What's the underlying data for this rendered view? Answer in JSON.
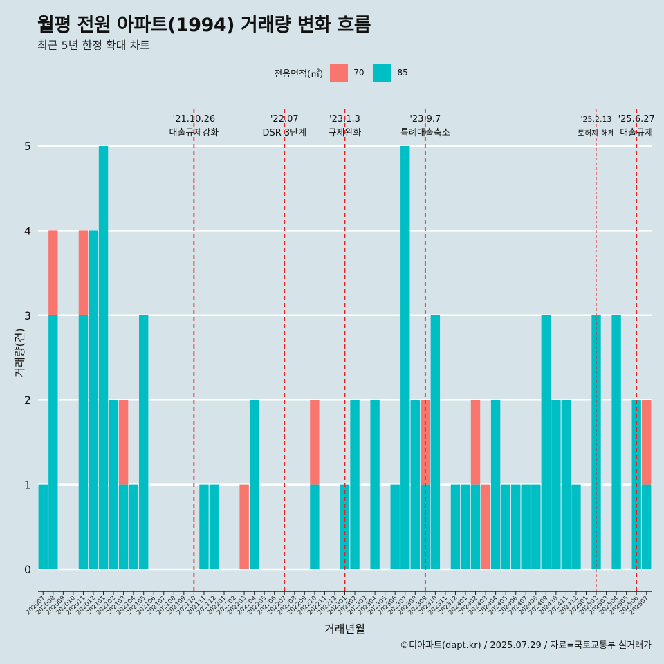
{
  "title": "월평 전원 아파트(1994) 거래량 변화 흐름",
  "subtitle": "최근 5년 한정 확대 차트",
  "caption": "©디아파트(dapt.kr) / 2025.07.29 / 자료=국토교통부 실거래가",
  "colors": {
    "s70": "#f8766d",
    "s85": "#00bfc4",
    "event_line": "#e8201f",
    "background": "#d6e4ea"
  },
  "chart_data": {
    "type": "bar",
    "xlabel": "거래년월",
    "ylabel": "거래량(건)",
    "ylim": [
      0,
      5
    ],
    "yticks": [
      0,
      1,
      2,
      3,
      4,
      5
    ],
    "legend": {
      "title": "전용면적(㎡)",
      "position": "top"
    },
    "categories": [
      "202007",
      "202008",
      "202009",
      "202010",
      "202011",
      "202012",
      "202101",
      "202102",
      "202103",
      "202104",
      "202105",
      "202106",
      "202107",
      "202108",
      "202109",
      "202110",
      "202111",
      "202112",
      "202201",
      "202202",
      "202203",
      "202204",
      "202205",
      "202206",
      "202207",
      "202208",
      "202209",
      "202210",
      "202211",
      "202212",
      "202301",
      "202302",
      "202303",
      "202304",
      "202305",
      "202306",
      "202307",
      "202308",
      "202309",
      "202310",
      "202311",
      "202312",
      "202401",
      "202402",
      "202403",
      "202404",
      "202405",
      "202406",
      "202407",
      "202408",
      "202409",
      "202410",
      "202411",
      "202412",
      "202501",
      "202502",
      "202503",
      "202504",
      "202505",
      "202506",
      "202507"
    ],
    "series": [
      {
        "name": "70",
        "values": [
          0,
          1,
          0,
          0,
          1,
          0,
          0,
          0,
          1,
          0,
          0,
          0,
          0,
          0,
          0,
          0,
          0,
          0,
          0,
          0,
          1,
          0,
          0,
          0,
          0,
          0,
          0,
          1,
          0,
          0,
          0,
          0,
          0,
          0,
          0,
          0,
          0,
          0,
          1,
          0,
          0,
          0,
          0,
          1,
          1,
          0,
          0,
          0,
          0,
          0,
          0,
          0,
          0,
          0,
          0,
          0,
          0,
          0,
          0,
          0,
          1
        ]
      },
      {
        "name": "85",
        "values": [
          1,
          3,
          0,
          0,
          3,
          4,
          5,
          2,
          1,
          1,
          3,
          0,
          0,
          0,
          0,
          0,
          1,
          1,
          0,
          0,
          0,
          2,
          0,
          0,
          0,
          0,
          0,
          1,
          0,
          0,
          1,
          2,
          0,
          2,
          0,
          1,
          5,
          2,
          1,
          3,
          0,
          1,
          1,
          1,
          0,
          2,
          1,
          1,
          1,
          1,
          3,
          2,
          2,
          1,
          0,
          3,
          0,
          3,
          0,
          2,
          1
        ]
      }
    ],
    "events": [
      {
        "date": "'21.10.26",
        "label": "대출규제강화",
        "month": "202110",
        "dashed": true
      },
      {
        "date": "'22.07",
        "label": "DSR 3단계",
        "month": "202207",
        "dashed": true
      },
      {
        "date": "'23.1.3",
        "label": "규제완화",
        "month": "202301",
        "dashed": true
      },
      {
        "date": "'23.9.7",
        "label": "특례대출축소",
        "month": "202309",
        "dashed": true
      },
      {
        "date": "'25.2.13",
        "label": "토허제 해제",
        "month": "202502",
        "dashed": false
      },
      {
        "date": "'25.6.27",
        "label": "대출규제",
        "month": "202506",
        "dashed": true
      }
    ]
  }
}
